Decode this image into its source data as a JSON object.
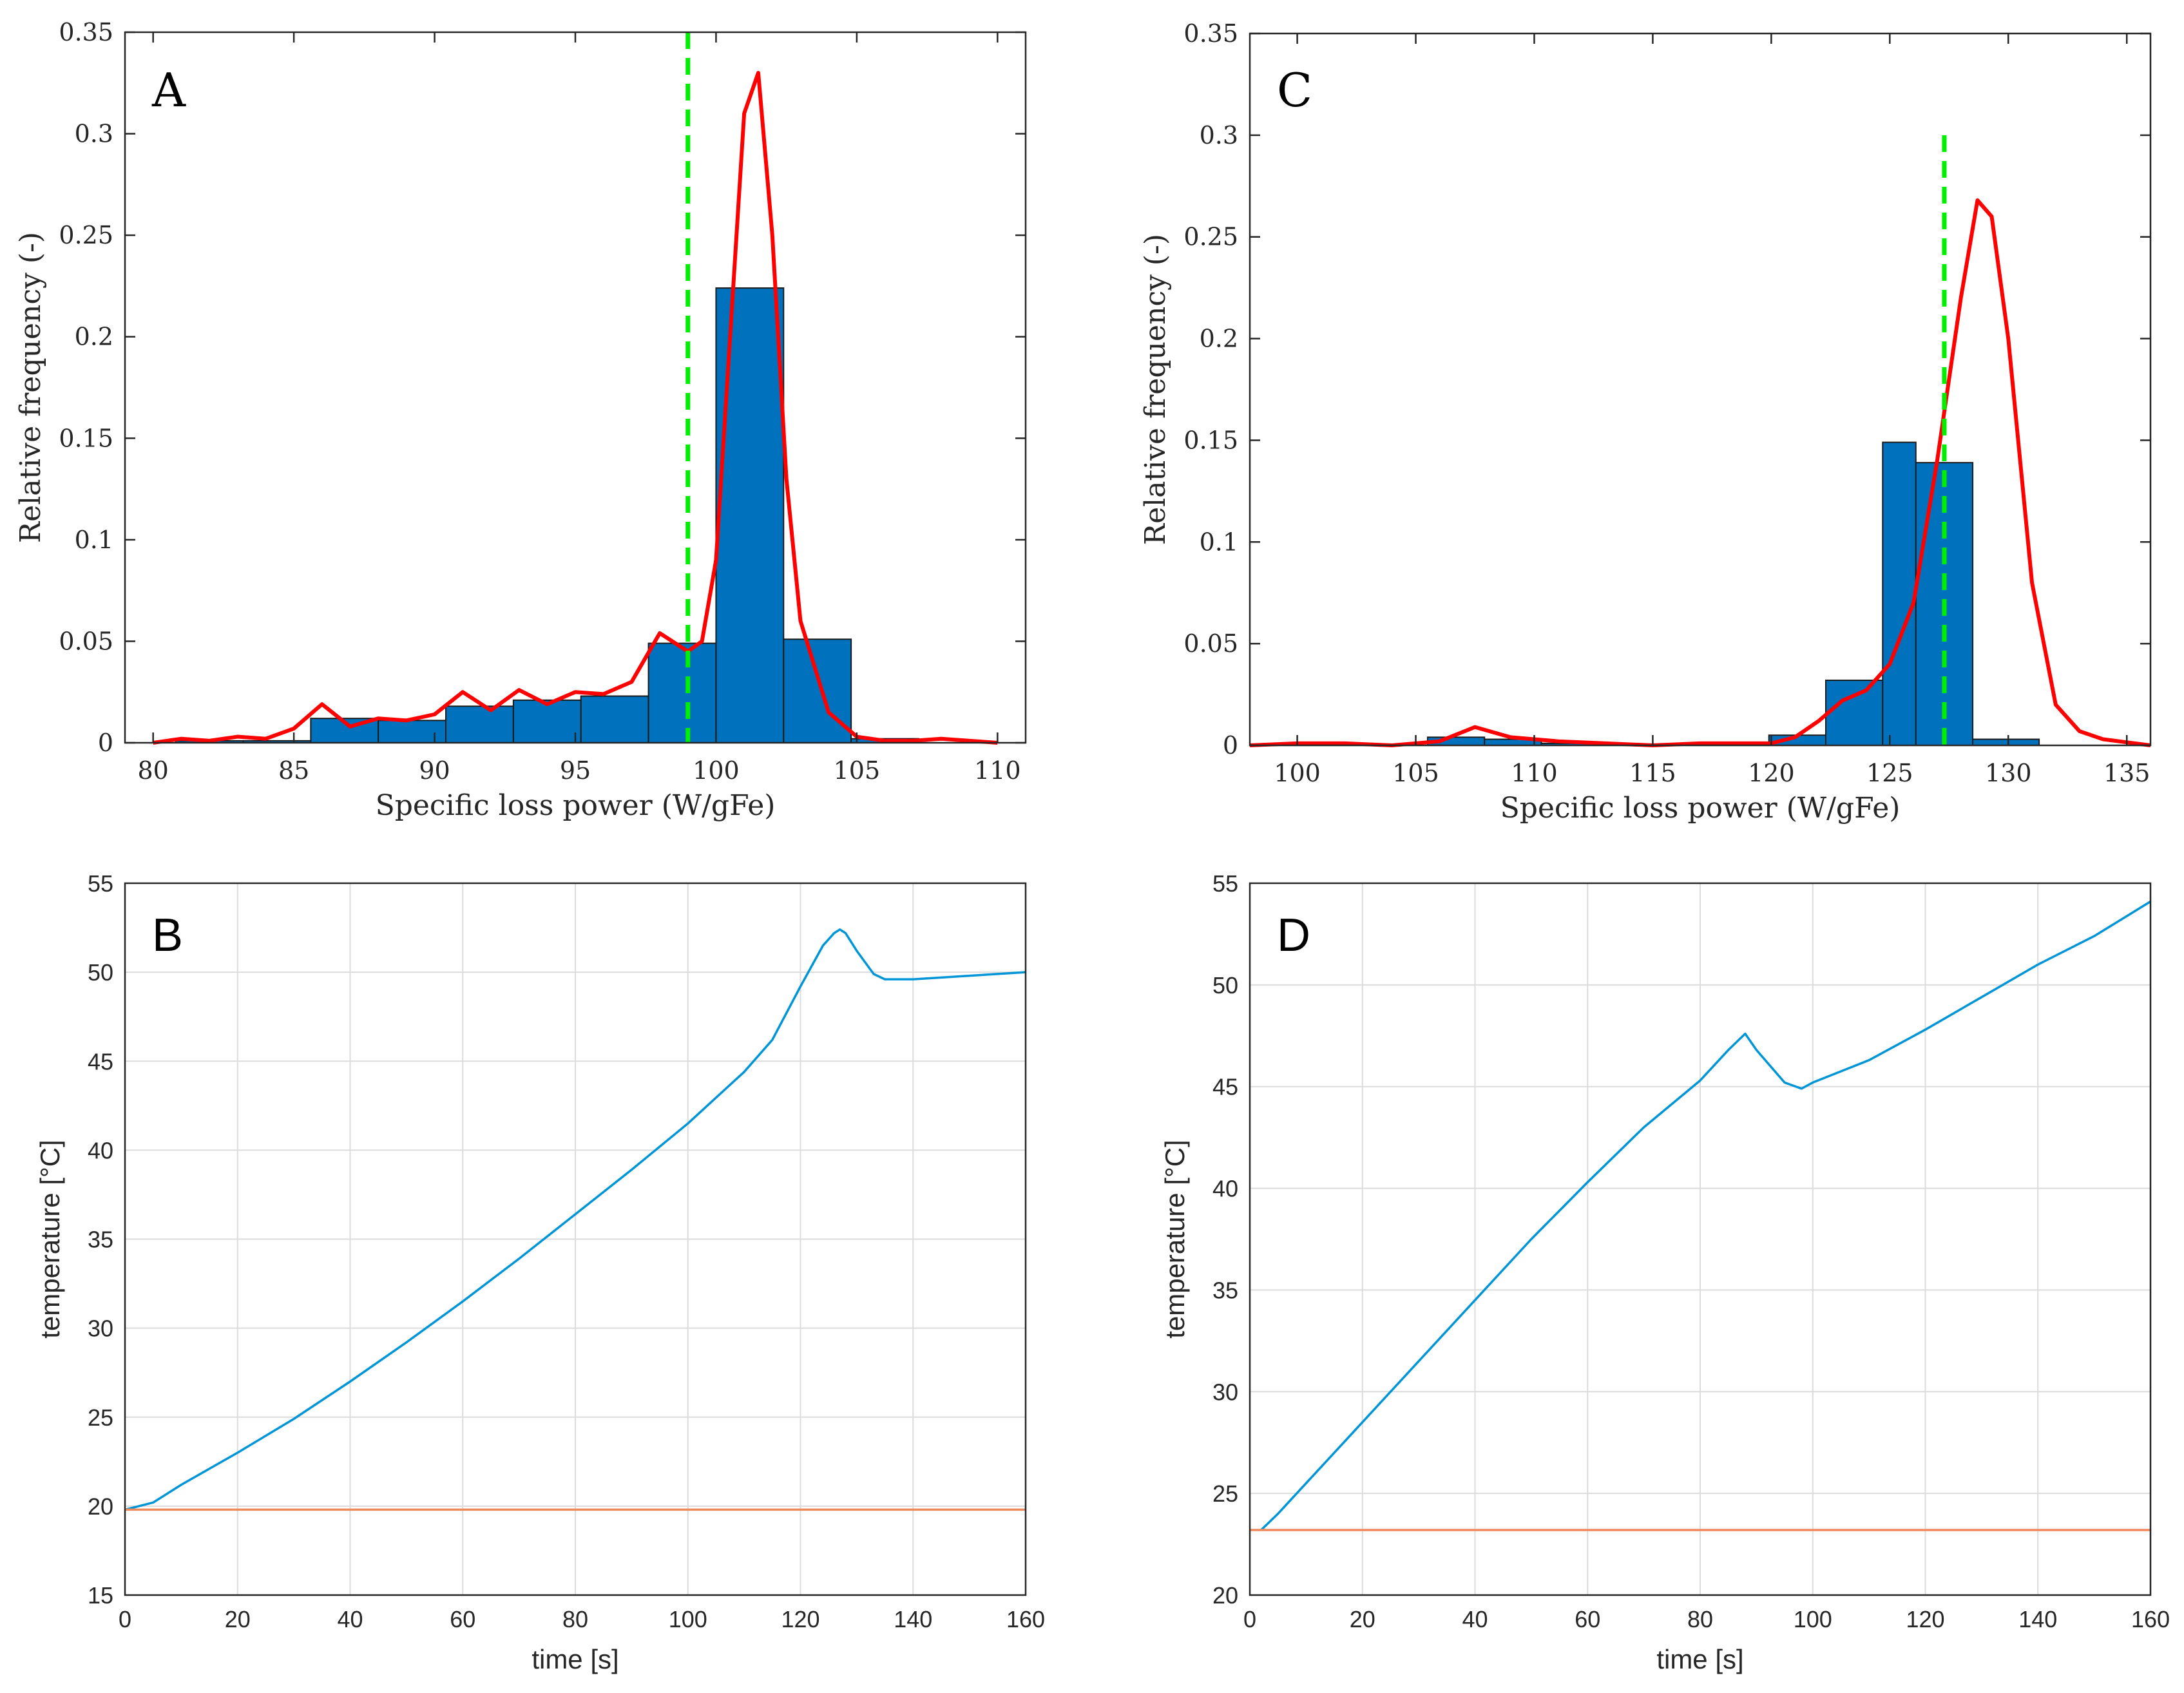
{
  "figure": {
    "panels": [
      "A",
      "B",
      "C",
      "D"
    ]
  },
  "chart_data": [
    {
      "panel": "A",
      "type": "bar",
      "subtype": "histogram-with-density",
      "xlabel": "Specific loss power (W/gFe)",
      "ylabel": "Relative frequency (-)",
      "xlim": [
        79,
        111
      ],
      "ylim": [
        0,
        0.35
      ],
      "xticks": [
        80,
        85,
        90,
        95,
        100,
        105,
        110
      ],
      "yticks": [
        0,
        0.05,
        0.1,
        0.15,
        0.2,
        0.25,
        0.3,
        0.35
      ],
      "ytick_labels": [
        "0",
        "0.05",
        "0.1",
        "0.15",
        "0.2",
        "0.25",
        "0.3",
        "0.35"
      ],
      "bin_edges": [
        78.4,
        80.8,
        83.2,
        85.6,
        88.0,
        90.4,
        92.8,
        95.2,
        97.6,
        100.0,
        102.4,
        104.8,
        107.2
      ],
      "bins": [
        0.0,
        0.001,
        0.001,
        0.012,
        0.011,
        0.018,
        0.021,
        0.023,
        0.049,
        0.224,
        0.051,
        0.002
      ],
      "bar_color": "#0072bd",
      "density": {
        "color": "#ff0000",
        "x": [
          80,
          81,
          82,
          83,
          84,
          85,
          86,
          87,
          88,
          89,
          90,
          91,
          92,
          93,
          94,
          95,
          96,
          97,
          98,
          99,
          99.5,
          100,
          100.5,
          101,
          101.5,
          102,
          102.5,
          103,
          104,
          105,
          106,
          107,
          108,
          109,
          110
        ],
        "y": [
          0.0,
          0.002,
          0.001,
          0.003,
          0.002,
          0.007,
          0.019,
          0.008,
          0.012,
          0.011,
          0.014,
          0.025,
          0.016,
          0.026,
          0.019,
          0.025,
          0.024,
          0.03,
          0.054,
          0.045,
          0.05,
          0.09,
          0.2,
          0.31,
          0.33,
          0.25,
          0.13,
          0.06,
          0.015,
          0.003,
          0.001,
          0.001,
          0.002,
          0.001,
          0.0
        ]
      },
      "reference_line": {
        "x": 99,
        "color": "#00ee00",
        "style": "dashed"
      }
    },
    {
      "panel": "B",
      "type": "line",
      "xlabel": "time [s]",
      "ylabel": "temperature [°C]",
      "xlim": [
        0,
        160
      ],
      "ylim": [
        15,
        55
      ],
      "xticks": [
        0,
        20,
        40,
        60,
        80,
        100,
        120,
        140,
        160
      ],
      "yticks": [
        15,
        20,
        25,
        30,
        35,
        40,
        45,
        50,
        55
      ],
      "grid": true,
      "series": [
        {
          "name": "temperature",
          "color": "#0095d6",
          "x": [
            0,
            5,
            10,
            20,
            30,
            40,
            50,
            60,
            70,
            80,
            90,
            100,
            110,
            115,
            120,
            124,
            126,
            127,
            128,
            130,
            133,
            135,
            140,
            150,
            160
          ],
          "y": [
            19.8,
            20.2,
            21.2,
            23.0,
            24.9,
            27.0,
            29.2,
            31.5,
            33.9,
            36.4,
            38.9,
            41.5,
            44.4,
            46.2,
            49.2,
            51.5,
            52.2,
            52.4,
            52.2,
            51.2,
            49.9,
            49.6,
            49.6,
            49.8,
            50.0
          ]
        },
        {
          "name": "baseline",
          "color": "#f08a5d",
          "x": [
            0,
            160
          ],
          "y": [
            19.8,
            19.8
          ]
        }
      ]
    },
    {
      "panel": "C",
      "type": "bar",
      "subtype": "histogram-with-density",
      "xlabel": "Specific loss power (W/gFe)",
      "ylabel": "Relative frequency (-)",
      "xlim": [
        98,
        136
      ],
      "ylim": [
        0,
        0.35
      ],
      "xticks": [
        100,
        105,
        110,
        115,
        120,
        125,
        130,
        135
      ],
      "yticks": [
        0,
        0.05,
        0.1,
        0.15,
        0.2,
        0.25,
        0.3,
        0.35
      ],
      "ytick_labels": [
        "0",
        "0.05",
        "0.1",
        "0.15",
        "0.2",
        "0.25",
        "0.3",
        "0.35"
      ],
      "bin_edges": [
        105.5,
        107.9,
        110.3,
        112.7,
        115.1,
        117.5,
        119.9,
        122.3,
        124.7,
        126.1,
        128.5,
        131.3,
        133.8
      ],
      "bins": [
        0.004,
        0.003,
        0.001,
        0.0,
        0.0,
        0.0,
        0.005,
        0.032,
        0.149,
        0.139,
        0.003
      ],
      "bar_color": "#0072bd",
      "density": {
        "color": "#ff0000",
        "x": [
          98,
          100,
          102,
          104,
          106,
          107.5,
          109,
          111,
          113,
          115,
          117,
          119,
          120,
          121,
          122,
          123,
          124,
          125,
          126,
          127,
          128,
          128.7,
          129.3,
          130,
          131,
          132,
          133,
          134,
          136
        ],
        "y": [
          0.0,
          0.001,
          0.001,
          0.0,
          0.002,
          0.009,
          0.004,
          0.002,
          0.001,
          0.0,
          0.001,
          0.001,
          0.001,
          0.004,
          0.012,
          0.022,
          0.027,
          0.04,
          0.07,
          0.14,
          0.22,
          0.268,
          0.26,
          0.2,
          0.08,
          0.02,
          0.007,
          0.003,
          0.0
        ]
      },
      "reference_line": {
        "x": 127.3,
        "ymax": 0.3,
        "color": "#00ee00",
        "style": "dashed"
      }
    },
    {
      "panel": "D",
      "type": "line",
      "xlabel": "time [s]",
      "ylabel": "temperature [°C]",
      "xlim": [
        0,
        160
      ],
      "ylim": [
        20,
        55
      ],
      "xticks": [
        0,
        20,
        40,
        60,
        80,
        100,
        120,
        140,
        160
      ],
      "yticks": [
        20,
        25,
        30,
        35,
        40,
        45,
        50,
        55
      ],
      "grid": true,
      "series": [
        {
          "name": "temperature",
          "color": "#0095d6",
          "x": [
            2,
            5,
            10,
            20,
            30,
            40,
            50,
            60,
            70,
            80,
            85,
            88,
            90,
            95,
            98,
            100,
            110,
            120,
            130,
            140,
            150,
            160
          ],
          "y": [
            23.2,
            24.0,
            25.5,
            28.5,
            31.5,
            34.5,
            37.5,
            40.3,
            43.0,
            45.3,
            46.8,
            47.6,
            46.8,
            45.2,
            44.9,
            45.2,
            46.3,
            47.8,
            49.4,
            51.0,
            52.4,
            54.1
          ]
        },
        {
          "name": "baseline",
          "color": "#f08a5d",
          "x": [
            0,
            160
          ],
          "y": [
            23.2,
            23.2
          ]
        }
      ]
    }
  ]
}
